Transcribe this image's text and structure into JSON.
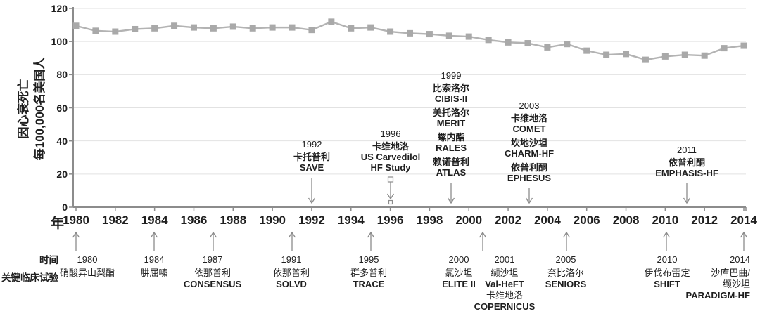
{
  "y_axis": {
    "label_line1": "因心衰死亡",
    "label_line2": "每100,000名美国人",
    "ticks": [
      0,
      20,
      40,
      60,
      80,
      100,
      120
    ]
  },
  "x_axis": {
    "label": "年",
    "ticks": [
      1980,
      1982,
      1984,
      1986,
      1988,
      1990,
      1992,
      1994,
      1996,
      1998,
      2000,
      2002,
      2004,
      2006,
      2008,
      2010,
      2012,
      2014
    ]
  },
  "chart_data": {
    "type": "line",
    "marker": "square",
    "x": [
      1980,
      1981,
      1982,
      1983,
      1984,
      1985,
      1986,
      1987,
      1988,
      1989,
      1990,
      1991,
      1992,
      1993,
      1994,
      1995,
      1996,
      1997,
      1998,
      1999,
      2000,
      2001,
      2002,
      2003,
      2004,
      2005,
      2006,
      2007,
      2008,
      2009,
      2010,
      2011,
      2012,
      2013,
      2014
    ],
    "values": [
      109.5,
      106.5,
      106,
      107.5,
      108,
      109.5,
      108.5,
      108,
      109,
      108,
      108.5,
      108.5,
      107,
      112,
      108,
      108.5,
      106,
      105,
      104.5,
      103.5,
      103,
      101,
      99.5,
      99,
      96.5,
      98.5,
      94.5,
      92,
      92.5,
      89,
      91,
      92,
      91.5,
      96,
      97.5
    ],
    "ylabel": "因心衰死亡 每100,000名美国人",
    "xlabel": "年",
    "ylim": [
      0,
      120
    ],
    "xlim": [
      1980,
      2014
    ],
    "grid": true,
    "legend": false
  },
  "annotations_above": [
    {
      "year": "1992",
      "arrow": "plain",
      "lines": [
        {
          "text": "卡托普利",
          "bold": true
        },
        {
          "text": "SAVE",
          "bold": true
        }
      ]
    },
    {
      "year": "1996",
      "arrow": "squares",
      "lines": [
        {
          "text": "卡维地洛",
          "bold": true
        },
        {
          "text": "US Carvedilol",
          "bold": true
        },
        {
          "text": "HF Study",
          "bold": true
        }
      ]
    },
    {
      "year": "1999",
      "arrow": "plain",
      "lines": [
        {
          "text": "比索洛尔",
          "bold": true
        },
        {
          "text": "CIBIS-II",
          "bold": true
        },
        {
          "text": "美托洛尔",
          "bold": true,
          "gap": true
        },
        {
          "text": "MERIT",
          "bold": true
        },
        {
          "text": "螺内酯",
          "bold": true,
          "gap": true
        },
        {
          "text": "RALES",
          "bold": true
        },
        {
          "text": "赖诺普利",
          "bold": true,
          "gap": true
        },
        {
          "text": "ATLAS",
          "bold": true
        }
      ]
    },
    {
      "year": "2003",
      "arrow": "plain",
      "lines": [
        {
          "text": "卡维地洛",
          "bold": true
        },
        {
          "text": "COMET",
          "bold": true
        },
        {
          "text": "坎地沙坦",
          "bold": true,
          "gap": true
        },
        {
          "text": "CHARM-HF",
          "bold": true
        },
        {
          "text": "依普利酮",
          "bold": true,
          "gap": true
        },
        {
          "text": "EPHESUS",
          "bold": true
        }
      ]
    },
    {
      "year": "2011",
      "arrow": "plain",
      "lines": [
        {
          "text": "依普利酮",
          "bold": true
        },
        {
          "text": "EMPHASIS-HF",
          "bold": true
        }
      ]
    }
  ],
  "timeline_below": {
    "row_label_time": "时间",
    "row_label_trials": "关键临床试验",
    "entries": [
      {
        "year": "1980",
        "lines": [
          {
            "text": "硝酸异山梨酯"
          }
        ]
      },
      {
        "year": "1984",
        "lines": [
          {
            "text": "肼屈嗪"
          }
        ]
      },
      {
        "year": "1987",
        "lines": [
          {
            "text": "依那普利"
          },
          {
            "text": "CONSENSUS",
            "bold": true
          }
        ]
      },
      {
        "year": "1991",
        "lines": [
          {
            "text": "依那普利"
          },
          {
            "text": "SOLVD",
            "bold": true
          }
        ]
      },
      {
        "year": "1995",
        "lines": [
          {
            "text": "群多普利"
          },
          {
            "text": "TRACE",
            "bold": true
          }
        ]
      },
      {
        "year": "2000",
        "lines": [
          {
            "text": "氯沙坦"
          },
          {
            "text": "ELITE II",
            "bold": true
          }
        ]
      },
      {
        "year": "2001",
        "lines": [
          {
            "text": "缬沙坦"
          },
          {
            "text": "Val-HeFT",
            "bold": true
          },
          {
            "text": "卡维地洛"
          },
          {
            "text": "COPERNICUS",
            "bold": true
          }
        ]
      },
      {
        "year": "2005",
        "lines": [
          {
            "text": "奈比洛尔"
          },
          {
            "text": "SENIORS",
            "bold": true
          }
        ]
      },
      {
        "year": "2010",
        "lines": [
          {
            "text": "伊伐布雷定"
          },
          {
            "text": "SHIFT",
            "bold": true
          }
        ]
      },
      {
        "year": "2014",
        "lines": [
          {
            "text": "沙库巴曲/"
          },
          {
            "text": "缬沙坦"
          },
          {
            "text": "PARADIGM-HF",
            "bold": true
          }
        ]
      }
    ]
  },
  "colors": {
    "line": "#b3b3b3",
    "marker": "#a9a9a9",
    "grid": "#e2e2e2",
    "axis": "#8c8c8c",
    "arrow": "#8c8c8c",
    "text": "#1f1f1f"
  }
}
